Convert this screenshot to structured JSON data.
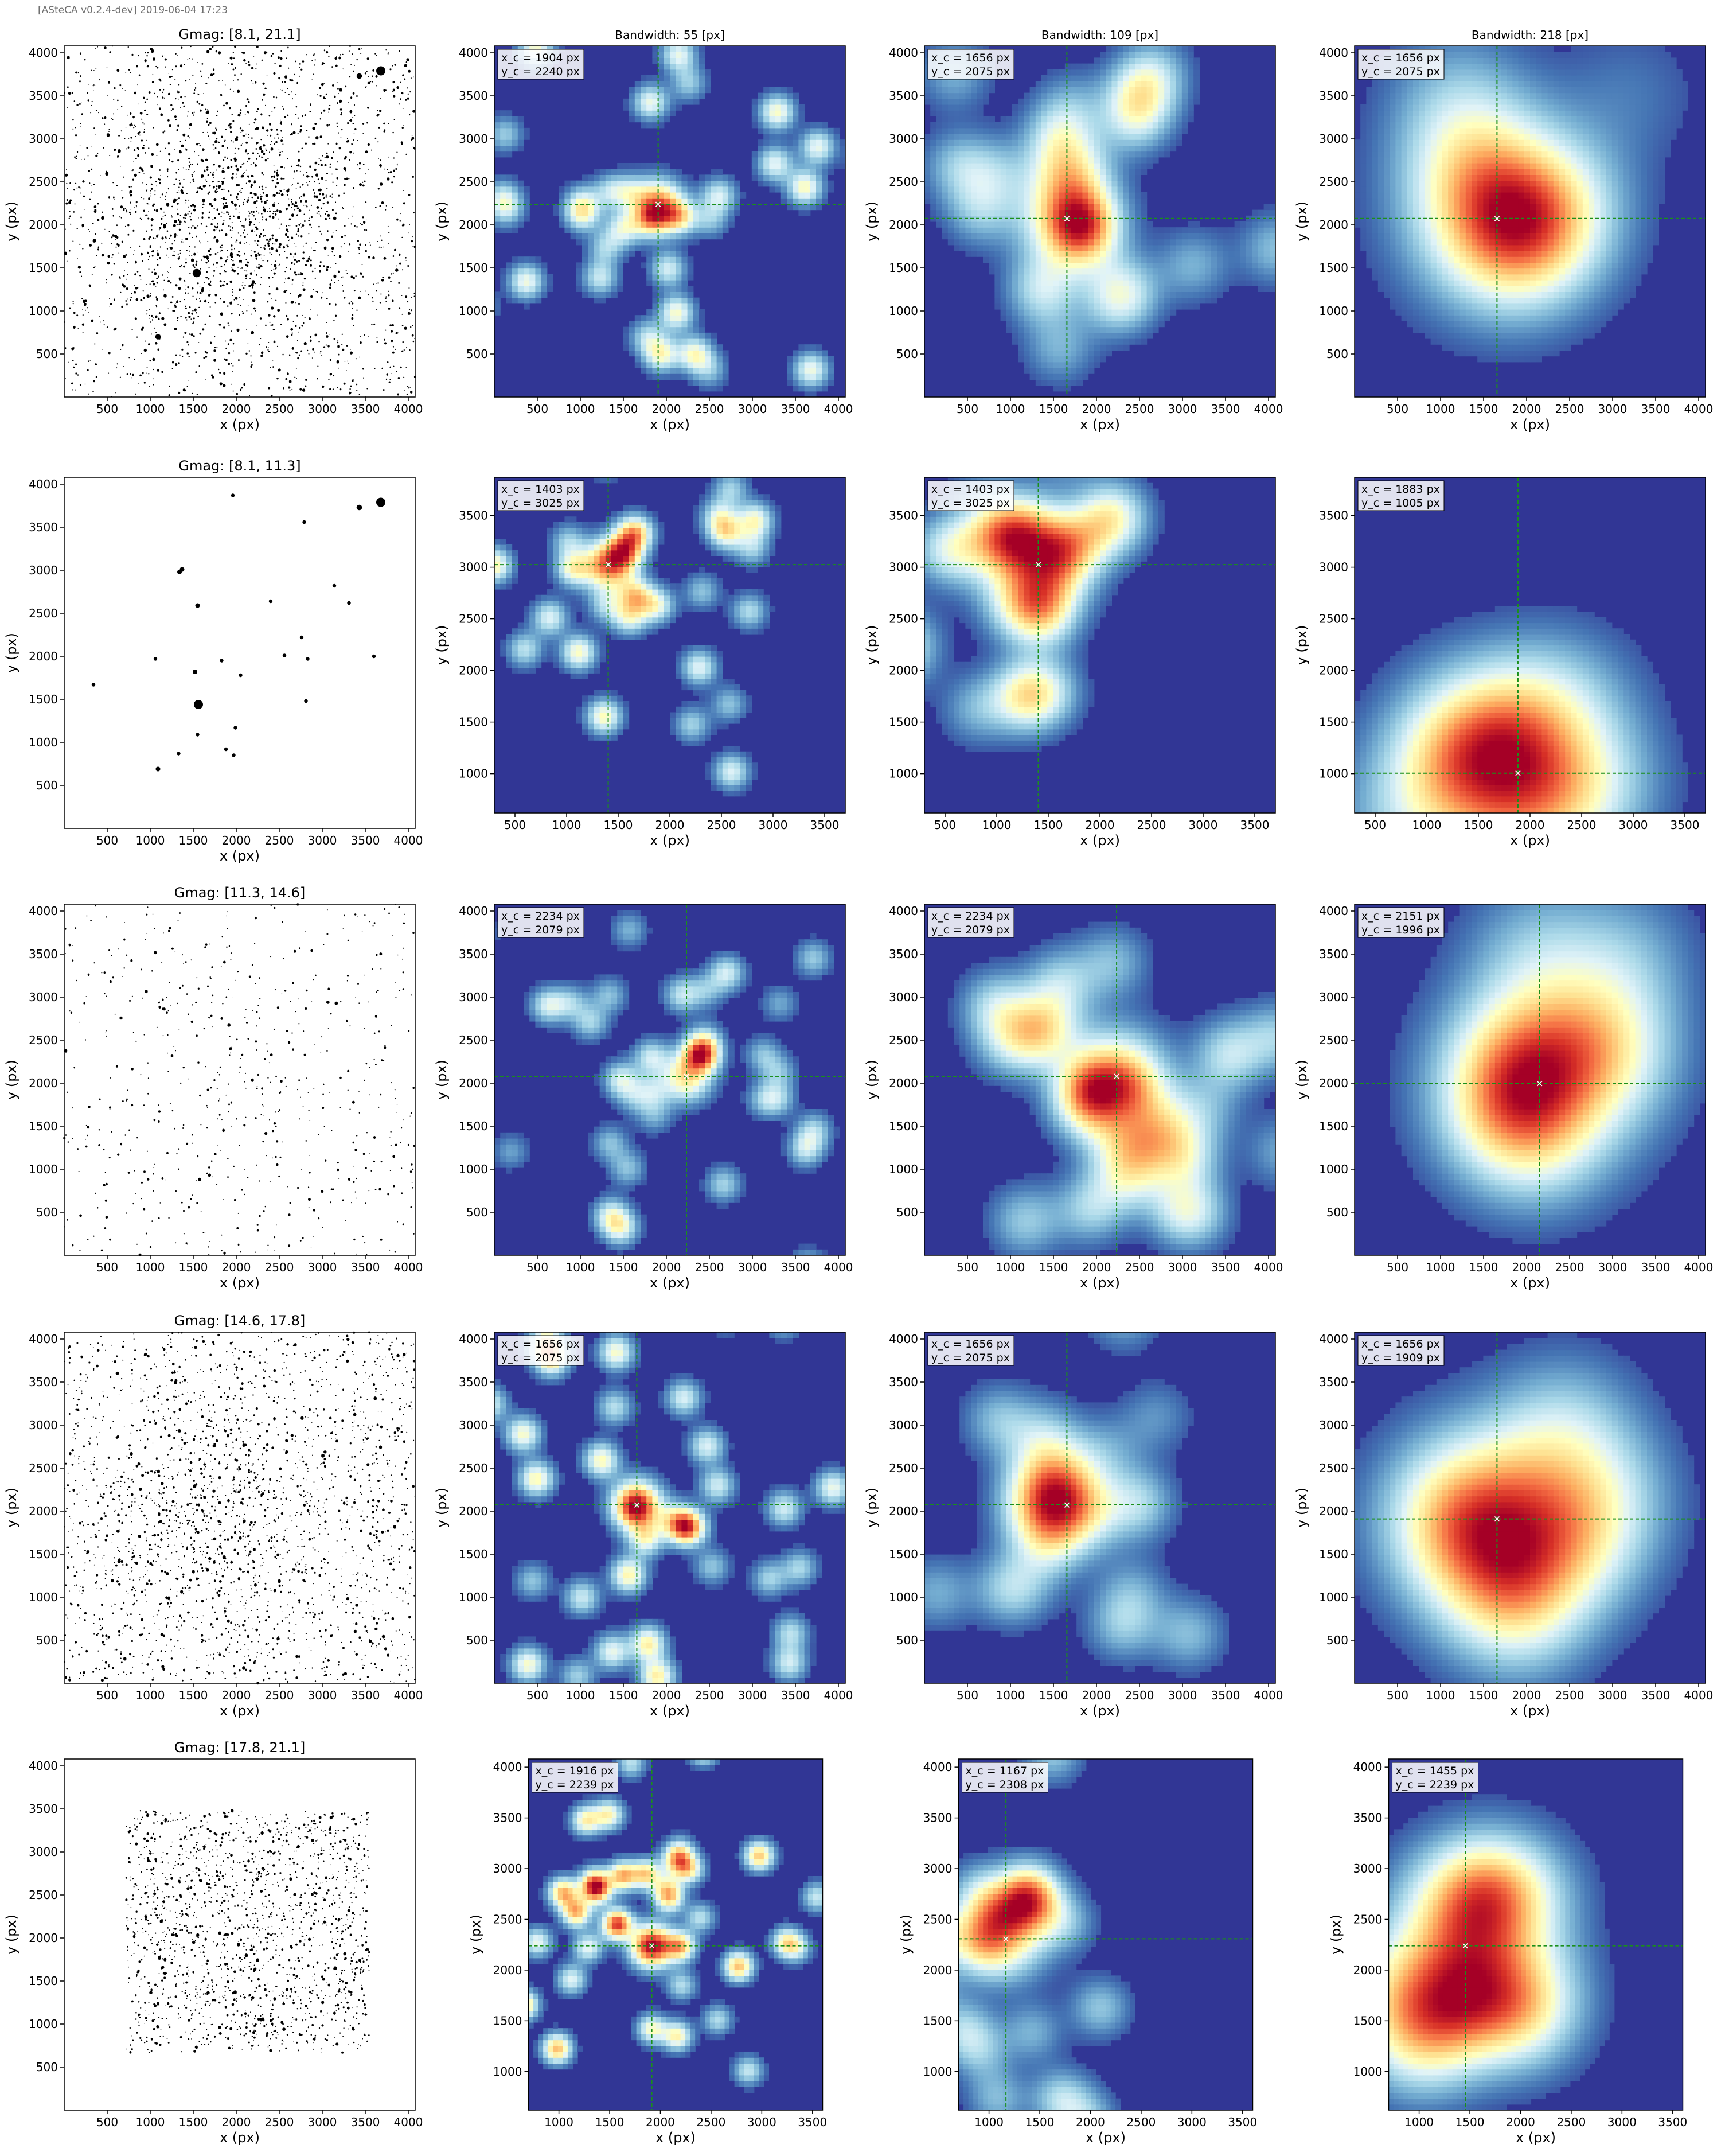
{
  "header": {
    "note": "[ASteCA v0.2.4-dev] 2019-06-04 17:23"
  },
  "column_titles": [
    "",
    "Bandwidth: 55 [px]",
    "Bandwidth: 109 [px]",
    "Bandwidth: 218 [px]"
  ],
  "xlabel": "x (px)",
  "ylabel": "y (px)",
  "colors": {
    "scatter": "#000000",
    "crosshair": "#1a8f1a",
    "map_low": "#313695",
    "map_high": "#a50026"
  },
  "chart_data": [
    {
      "type": "scatter",
      "title": "Gmag: [8.1, 21.1]",
      "xlim": [
        0,
        4080
      ],
      "ylim": [
        0,
        4080
      ],
      "xticks": [
        500,
        1000,
        1500,
        2000,
        2500,
        3000,
        3500,
        4000
      ],
      "yticks": [
        500,
        1000,
        1500,
        2000,
        2500,
        3000,
        3500,
        4000
      ],
      "distribution": {
        "n": 2600,
        "x_range": [
          0,
          4080
        ],
        "y_range": [
          0,
          4080
        ],
        "concentration": 0.35,
        "center": [
          1900,
          2100
        ]
      },
      "bright_stars": [
        {
          "x": 3680,
          "y": 3790,
          "size": 5
        },
        {
          "x": 1540,
          "y": 1440,
          "size": 4.5
        },
        {
          "x": 3430,
          "y": 3730,
          "size": 3
        },
        {
          "x": 1090,
          "y": 700,
          "size": 3
        }
      ]
    },
    {
      "type": "heatmap",
      "colormap": "RdYlBu_r",
      "xlim": [
        0,
        4080
      ],
      "ylim": [
        0,
        4080
      ],
      "xticks": [
        500,
        1000,
        1500,
        2000,
        2500,
        3000,
        3500,
        4000
      ],
      "yticks": [
        500,
        1000,
        1500,
        2000,
        2500,
        3000,
        3500,
        4000
      ],
      "center": {
        "x": 1904,
        "y": 2240
      },
      "center_label": {
        "x": "x_c = 1904 px",
        "y": "y_c = 2240 px"
      }
    },
    {
      "type": "heatmap",
      "colormap": "RdYlBu_r",
      "xlim": [
        0,
        4080
      ],
      "ylim": [
        0,
        4080
      ],
      "xticks": [
        500,
        1000,
        1500,
        2000,
        2500,
        3000,
        3500,
        4000
      ],
      "yticks": [
        500,
        1000,
        1500,
        2000,
        2500,
        3000,
        3500,
        4000
      ],
      "center": {
        "x": 1656,
        "y": 2075
      },
      "center_label": {
        "x": "x_c = 1656 px",
        "y": "y_c = 2075 px"
      }
    },
    {
      "type": "heatmap",
      "colormap": "RdYlBu_r",
      "xlim": [
        0,
        4080
      ],
      "ylim": [
        0,
        4080
      ],
      "xticks": [
        500,
        1000,
        1500,
        2000,
        2500,
        3000,
        3500,
        4000
      ],
      "yticks": [
        500,
        1000,
        1500,
        2000,
        2500,
        3000,
        3500,
        4000
      ],
      "center": {
        "x": 1656,
        "y": 2075
      },
      "center_label": {
        "x": "x_c = 1656 px",
        "y": "y_c = 2075 px"
      }
    },
    {
      "type": "scatter",
      "title": "Gmag: [8.1, 11.3]",
      "xlim": [
        0,
        4080
      ],
      "ylim": [
        0,
        4080
      ],
      "xticks": [
        500,
        1000,
        1500,
        2000,
        2500,
        3000,
        3500,
        4000
      ],
      "yticks": [
        500,
        1000,
        1500,
        2000,
        2500,
        3000,
        3500,
        4000
      ],
      "points": [
        [
          1960,
          3870
        ],
        [
          3680,
          3790
        ],
        [
          3430,
          3730
        ],
        [
          2790,
          3560
        ],
        [
          1370,
          3010
        ],
        [
          1340,
          2980
        ],
        [
          3140,
          2820
        ],
        [
          3310,
          2620
        ],
        [
          2400,
          2640
        ],
        [
          1550,
          2590
        ],
        [
          1060,
          1970
        ],
        [
          1830,
          1950
        ],
        [
          2560,
          2010
        ],
        [
          2830,
          1970
        ],
        [
          3600,
          2000
        ],
        [
          2760,
          2220
        ],
        [
          340,
          1670
        ],
        [
          2050,
          1780
        ],
        [
          1520,
          1820
        ],
        [
          2810,
          1480
        ],
        [
          1560,
          1440
        ],
        [
          1990,
          1170
        ],
        [
          1550,
          1090
        ],
        [
          1330,
          870
        ],
        [
          1880,
          920
        ],
        [
          1970,
          850
        ],
        [
          1090,
          690
        ]
      ],
      "sizes": [
        2,
        5,
        3,
        2,
        2.5,
        2.5,
        2,
        2,
        2,
        2.5,
        2,
        2,
        2,
        2,
        2,
        2,
        2,
        2,
        2.5,
        2,
        5,
        2,
        2,
        2,
        2,
        2,
        2.5
      ]
    },
    {
      "type": "heatmap",
      "colormap": "RdYlBu_r",
      "xlim": [
        300,
        3700
      ],
      "ylim": [
        620,
        3870
      ],
      "xticks": [
        500,
        1000,
        1500,
        2000,
        2500,
        3000,
        3500
      ],
      "yticks": [
        1000,
        1500,
        2000,
        2500,
        3000,
        3500
      ],
      "center": {
        "x": 1403,
        "y": 3025
      },
      "center_label": {
        "x": "x_c = 1403 px",
        "y": "y_c = 3025 px"
      }
    },
    {
      "type": "heatmap",
      "colormap": "RdYlBu_r",
      "xlim": [
        300,
        3700
      ],
      "ylim": [
        620,
        3870
      ],
      "xticks": [
        500,
        1000,
        1500,
        2000,
        2500,
        3000,
        3500
      ],
      "yticks": [
        1000,
        1500,
        2000,
        2500,
        3000,
        3500
      ],
      "center": {
        "x": 1403,
        "y": 3025
      },
      "center_label": {
        "x": "x_c = 1403 px",
        "y": "y_c = 3025 px"
      }
    },
    {
      "type": "heatmap",
      "colormap": "RdYlBu_r",
      "xlim": [
        300,
        3700
      ],
      "ylim": [
        620,
        3870
      ],
      "xticks": [
        500,
        1000,
        1500,
        2000,
        2500,
        3000,
        3500
      ],
      "yticks": [
        1000,
        1500,
        2000,
        2500,
        3000,
        3500
      ],
      "center": {
        "x": 1883,
        "y": 1005
      },
      "center_label": {
        "x": "x_c = 1883 px",
        "y": "y_c = 1005 px"
      }
    },
    {
      "type": "scatter",
      "title": "Gmag: [11.3, 14.6]",
      "xlim": [
        0,
        4080
      ],
      "ylim": [
        0,
        4080
      ],
      "xticks": [
        500,
        1000,
        1500,
        2000,
        2500,
        3000,
        3500,
        4000
      ],
      "yticks": [
        500,
        1000,
        1500,
        2000,
        2500,
        3000,
        3500,
        4000
      ],
      "distribution": {
        "n": 620,
        "x_range": [
          0,
          4080
        ],
        "y_range": [
          0,
          4080
        ],
        "concentration": 0.15,
        "center": [
          2200,
          2050
        ]
      }
    },
    {
      "type": "heatmap",
      "colormap": "RdYlBu_r",
      "xlim": [
        0,
        4080
      ],
      "ylim": [
        0,
        4080
      ],
      "xticks": [
        500,
        1000,
        1500,
        2000,
        2500,
        3000,
        3500,
        4000
      ],
      "yticks": [
        500,
        1000,
        1500,
        2000,
        2500,
        3000,
        3500,
        4000
      ],
      "center": {
        "x": 2234,
        "y": 2079
      },
      "center_label": {
        "x": "x_c = 2234 px",
        "y": "y_c = 2079 px"
      }
    },
    {
      "type": "heatmap",
      "colormap": "RdYlBu_r",
      "xlim": [
        0,
        4080
      ],
      "ylim": [
        0,
        4080
      ],
      "xticks": [
        500,
        1000,
        1500,
        2000,
        2500,
        3000,
        3500,
        4000
      ],
      "yticks": [
        500,
        1000,
        1500,
        2000,
        2500,
        3000,
        3500,
        4000
      ],
      "center": {
        "x": 2234,
        "y": 2079
      },
      "center_label": {
        "x": "x_c = 2234 px",
        "y": "y_c = 2079 px"
      }
    },
    {
      "type": "heatmap",
      "colormap": "RdYlBu_r",
      "xlim": [
        0,
        4080
      ],
      "ylim": [
        0,
        4080
      ],
      "xticks": [
        500,
        1000,
        1500,
        2000,
        2500,
        3000,
        3500,
        4000
      ],
      "yticks": [
        500,
        1000,
        1500,
        2000,
        2500,
        3000,
        3500,
        4000
      ],
      "center": {
        "x": 2151,
        "y": 1996
      },
      "center_label": {
        "x": "x_c = 2151 px",
        "y": "y_c = 1996 px"
      }
    },
    {
      "type": "scatter",
      "title": "Gmag: [14.6, 17.8]",
      "xlim": [
        0,
        4080
      ],
      "ylim": [
        0,
        4080
      ],
      "xticks": [
        500,
        1000,
        1500,
        2000,
        2500,
        3000,
        3500,
        4000
      ],
      "yticks": [
        500,
        1000,
        1500,
        2000,
        2500,
        3000,
        3500,
        4000
      ],
      "distribution": {
        "n": 2300,
        "x_range": [
          0,
          4080
        ],
        "y_range": [
          0,
          4080
        ],
        "concentration": 0.2,
        "center": [
          1700,
          1950
        ]
      }
    },
    {
      "type": "heatmap",
      "colormap": "RdYlBu_r",
      "xlim": [
        0,
        4080
      ],
      "ylim": [
        0,
        4080
      ],
      "xticks": [
        500,
        1000,
        1500,
        2000,
        2500,
        3000,
        3500,
        4000
      ],
      "yticks": [
        500,
        1000,
        1500,
        2000,
        2500,
        3000,
        3500,
        4000
      ],
      "center": {
        "x": 1656,
        "y": 2075
      },
      "center_label": {
        "x": "x_c = 1656 px",
        "y": "y_c = 2075 px"
      }
    },
    {
      "type": "heatmap",
      "colormap": "RdYlBu_r",
      "xlim": [
        0,
        4080
      ],
      "ylim": [
        0,
        4080
      ],
      "xticks": [
        500,
        1000,
        1500,
        2000,
        2500,
        3000,
        3500,
        4000
      ],
      "yticks": [
        500,
        1000,
        1500,
        2000,
        2500,
        3000,
        3500,
        4000
      ],
      "center": {
        "x": 1656,
        "y": 2075
      },
      "center_label": {
        "x": "x_c = 1656 px",
        "y": "y_c = 2075 px"
      }
    },
    {
      "type": "heatmap",
      "colormap": "RdYlBu_r",
      "xlim": [
        0,
        4080
      ],
      "ylim": [
        0,
        4080
      ],
      "xticks": [
        500,
        1000,
        1500,
        2000,
        2500,
        3000,
        3500,
        4000
      ],
      "yticks": [
        500,
        1000,
        1500,
        2000,
        2500,
        3000,
        3500,
        4000
      ],
      "center": {
        "x": 1656,
        "y": 1909
      },
      "center_label": {
        "x": "x_c = 1656 px",
        "y": "y_c = 1909 px"
      }
    },
    {
      "type": "scatter",
      "title": "Gmag: [17.8, 21.1]",
      "xlim": [
        0,
        4080
      ],
      "ylim": [
        0,
        4080
      ],
      "xticks": [
        500,
        1000,
        1500,
        2000,
        2500,
        3000,
        3500,
        4000
      ],
      "yticks": [
        500,
        1000,
        1500,
        2000,
        2500,
        3000,
        3500,
        4000
      ],
      "distribution": {
        "n": 1700,
        "x_range": [
          720,
          3550
        ],
        "y_range": [
          660,
          3480
        ],
        "concentration": 0.1,
        "center": [
          1800,
          2300
        ]
      }
    },
    {
      "type": "heatmap",
      "colormap": "RdYlBu_r",
      "xlim": [
        700,
        3600
      ],
      "ylim": [
        620,
        4080
      ],
      "xticks": [
        1000,
        1500,
        2000,
        2500,
        3000,
        3500
      ],
      "yticks": [
        1000,
        1500,
        2000,
        2500,
        3000,
        3500,
        4000
      ],
      "center": {
        "x": 1916,
        "y": 2239
      },
      "center_label": {
        "x": "x_c = 1916 px",
        "y": "y_c = 2239 px"
      }
    },
    {
      "type": "heatmap",
      "colormap": "RdYlBu_r",
      "xlim": [
        700,
        3600
      ],
      "ylim": [
        620,
        4080
      ],
      "xticks": [
        1000,
        1500,
        2000,
        2500,
        3000,
        3500
      ],
      "yticks": [
        1000,
        1500,
        2000,
        2500,
        3000,
        3500,
        4000
      ],
      "center": {
        "x": 1167,
        "y": 2308
      },
      "center_label": {
        "x": "x_c = 1167 px",
        "y": "y_c = 2308 px"
      }
    },
    {
      "type": "heatmap",
      "colormap": "RdYlBu_r",
      "xlim": [
        700,
        3600
      ],
      "ylim": [
        620,
        4080
      ],
      "xticks": [
        1000,
        1500,
        2000,
        2500,
        3000,
        3500
      ],
      "yticks": [
        1000,
        1500,
        2000,
        2500,
        3000,
        3500,
        4000
      ],
      "center": {
        "x": 1455,
        "y": 2239
      },
      "center_label": {
        "x": "x_c = 1455 px",
        "y": "y_c = 2239 px"
      }
    }
  ]
}
